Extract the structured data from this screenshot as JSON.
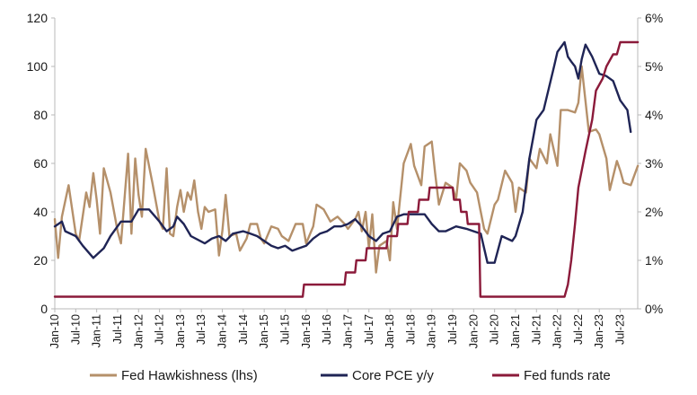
{
  "chart_data": {
    "type": "line",
    "title": "",
    "xlabel": "",
    "ylabel_left": "",
    "ylabel_right": "",
    "ylim_left": [
      0,
      120
    ],
    "yticks_left": [
      0,
      20,
      40,
      60,
      80,
      100,
      120
    ],
    "ylim_right": [
      0,
      6
    ],
    "yticks_right": [
      0,
      1,
      2,
      3,
      4,
      5,
      6
    ],
    "right_tick_suffix": "%",
    "x_range": [
      2010.0,
      2023.917
    ],
    "x_ticks": [
      {
        "label": "Jan-10",
        "t": 2010.0
      },
      {
        "label": "Jul-10",
        "t": 2010.5
      },
      {
        "label": "Jan-11",
        "t": 2011.0
      },
      {
        "label": "Jul-11",
        "t": 2011.5
      },
      {
        "label": "Jan-12",
        "t": 2012.0
      },
      {
        "label": "Jul-12",
        "t": 2012.5
      },
      {
        "label": "Jan-13",
        "t": 2013.0
      },
      {
        "label": "Jul-13",
        "t": 2013.5
      },
      {
        "label": "Jan-14",
        "t": 2014.0
      },
      {
        "label": "Jul-14",
        "t": 2014.5
      },
      {
        "label": "Jan-15",
        "t": 2015.0
      },
      {
        "label": "Jul-15",
        "t": 2015.5
      },
      {
        "label": "Jan-16",
        "t": 2016.0
      },
      {
        "label": "Jul-16",
        "t": 2016.5
      },
      {
        "label": "Jan-17",
        "t": 2017.0
      },
      {
        "label": "Jul-17",
        "t": 2017.5
      },
      {
        "label": "Jan-18",
        "t": 2018.0
      },
      {
        "label": "Jul-18",
        "t": 2018.5
      },
      {
        "label": "Jan-19",
        "t": 2019.0
      },
      {
        "label": "Jul-19",
        "t": 2019.5
      },
      {
        "label": "Jan-20",
        "t": 2020.0
      },
      {
        "label": "Jul-20",
        "t": 2020.5
      },
      {
        "label": "Jan-21",
        "t": 2021.0
      },
      {
        "label": "Jul-21",
        "t": 2021.5
      },
      {
        "label": "Jan-22",
        "t": 2022.0
      },
      {
        "label": "Jul-22",
        "t": 2022.5
      },
      {
        "label": "Jan-23",
        "t": 2023.0
      },
      {
        "label": "Jul-23",
        "t": 2023.5
      }
    ],
    "legend_position": "bottom",
    "series": [
      {
        "name": "Fed Hawkishness (lhs)",
        "axis": "left",
        "color": "#b5906a",
        "points": [
          [
            2010.0,
            37
          ],
          [
            2010.08,
            21
          ],
          [
            2010.17,
            38
          ],
          [
            2010.33,
            51
          ],
          [
            2010.5,
            31
          ],
          [
            2010.58,
            28
          ],
          [
            2010.75,
            48
          ],
          [
            2010.83,
            42
          ],
          [
            2010.92,
            56
          ],
          [
            2011.0,
            45
          ],
          [
            2011.08,
            31
          ],
          [
            2011.17,
            58
          ],
          [
            2011.33,
            48
          ],
          [
            2011.5,
            32
          ],
          [
            2011.58,
            27
          ],
          [
            2011.75,
            64
          ],
          [
            2011.83,
            31
          ],
          [
            2011.92,
            62
          ],
          [
            2012.0,
            47
          ],
          [
            2012.08,
            38
          ],
          [
            2012.17,
            66
          ],
          [
            2012.33,
            52
          ],
          [
            2012.5,
            36
          ],
          [
            2012.58,
            33
          ],
          [
            2012.67,
            58
          ],
          [
            2012.75,
            31
          ],
          [
            2012.83,
            30
          ],
          [
            2012.92,
            42
          ],
          [
            2013.0,
            49
          ],
          [
            2013.08,
            40
          ],
          [
            2013.17,
            48
          ],
          [
            2013.25,
            45
          ],
          [
            2013.33,
            53
          ],
          [
            2013.42,
            40
          ],
          [
            2013.5,
            33
          ],
          [
            2013.58,
            42
          ],
          [
            2013.67,
            40
          ],
          [
            2013.83,
            41
          ],
          [
            2013.92,
            22
          ],
          [
            2014.0,
            32
          ],
          [
            2014.08,
            47
          ],
          [
            2014.17,
            30
          ],
          [
            2014.33,
            31
          ],
          [
            2014.42,
            24
          ],
          [
            2014.58,
            29
          ],
          [
            2014.67,
            35
          ],
          [
            2014.83,
            35
          ],
          [
            2014.92,
            29
          ],
          [
            2015.0,
            27
          ],
          [
            2015.17,
            34
          ],
          [
            2015.33,
            33
          ],
          [
            2015.42,
            30
          ],
          [
            2015.58,
            28
          ],
          [
            2015.75,
            35
          ],
          [
            2015.92,
            35
          ],
          [
            2016.0,
            27
          ],
          [
            2016.17,
            34
          ],
          [
            2016.25,
            43
          ],
          [
            2016.42,
            41
          ],
          [
            2016.58,
            36
          ],
          [
            2016.75,
            38
          ],
          [
            2016.92,
            35
          ],
          [
            2017.0,
            33
          ],
          [
            2017.17,
            37
          ],
          [
            2017.25,
            40
          ],
          [
            2017.33,
            32
          ],
          [
            2017.42,
            40
          ],
          [
            2017.5,
            25
          ],
          [
            2017.58,
            39
          ],
          [
            2017.67,
            15
          ],
          [
            2017.75,
            26
          ],
          [
            2017.92,
            28
          ],
          [
            2018.0,
            20
          ],
          [
            2018.08,
            44
          ],
          [
            2018.17,
            33
          ],
          [
            2018.33,
            60
          ],
          [
            2018.5,
            68
          ],
          [
            2018.58,
            59
          ],
          [
            2018.75,
            51
          ],
          [
            2018.83,
            67
          ],
          [
            2019.0,
            69
          ],
          [
            2019.08,
            56
          ],
          [
            2019.17,
            43
          ],
          [
            2019.33,
            52
          ],
          [
            2019.5,
            50
          ],
          [
            2019.58,
            45
          ],
          [
            2019.67,
            60
          ],
          [
            2019.83,
            57
          ],
          [
            2019.92,
            52
          ],
          [
            2020.08,
            48
          ],
          [
            2020.17,
            40
          ],
          [
            2020.25,
            33
          ],
          [
            2020.33,
            31
          ],
          [
            2020.5,
            43
          ],
          [
            2020.58,
            45
          ],
          [
            2020.75,
            57
          ],
          [
            2020.92,
            52
          ],
          [
            2021.0,
            40
          ],
          [
            2021.08,
            50
          ],
          [
            2021.25,
            48
          ],
          [
            2021.33,
            62
          ],
          [
            2021.5,
            58
          ],
          [
            2021.58,
            66
          ],
          [
            2021.75,
            60
          ],
          [
            2021.83,
            72
          ],
          [
            2022.0,
            59
          ],
          [
            2022.08,
            82
          ],
          [
            2022.25,
            82
          ],
          [
            2022.42,
            81
          ],
          [
            2022.5,
            85
          ],
          [
            2022.58,
            100
          ],
          [
            2022.75,
            73
          ],
          [
            2022.92,
            74
          ],
          [
            2023.0,
            72
          ],
          [
            2023.17,
            62
          ],
          [
            2023.25,
            49
          ],
          [
            2023.42,
            61
          ],
          [
            2023.5,
            57
          ],
          [
            2023.58,
            52
          ],
          [
            2023.75,
            51
          ],
          [
            2023.92,
            59
          ]
        ]
      },
      {
        "name": "Core PCE y/y",
        "axis": "right",
        "color": "#1f2455",
        "points": [
          [
            2010.0,
            1.7
          ],
          [
            2010.17,
            1.8
          ],
          [
            2010.25,
            1.6
          ],
          [
            2010.5,
            1.5
          ],
          [
            2010.67,
            1.3
          ],
          [
            2010.92,
            1.05
          ],
          [
            2011.17,
            1.25
          ],
          [
            2011.33,
            1.5
          ],
          [
            2011.58,
            1.8
          ],
          [
            2011.83,
            1.8
          ],
          [
            2012.0,
            2.05
          ],
          [
            2012.25,
            2.05
          ],
          [
            2012.5,
            1.8
          ],
          [
            2012.67,
            1.6
          ],
          [
            2012.83,
            1.7
          ],
          [
            2012.92,
            1.9
          ],
          [
            2013.08,
            1.75
          ],
          [
            2013.25,
            1.5
          ],
          [
            2013.58,
            1.35
          ],
          [
            2013.75,
            1.45
          ],
          [
            2013.92,
            1.5
          ],
          [
            2014.08,
            1.4
          ],
          [
            2014.25,
            1.55
          ],
          [
            2014.5,
            1.6
          ],
          [
            2014.67,
            1.55
          ],
          [
            2014.83,
            1.5
          ],
          [
            2015.0,
            1.4
          ],
          [
            2015.17,
            1.3
          ],
          [
            2015.33,
            1.25
          ],
          [
            2015.5,
            1.3
          ],
          [
            2015.67,
            1.2
          ],
          [
            2015.83,
            1.25
          ],
          [
            2016.0,
            1.3
          ],
          [
            2016.17,
            1.45
          ],
          [
            2016.33,
            1.55
          ],
          [
            2016.5,
            1.6
          ],
          [
            2016.67,
            1.7
          ],
          [
            2016.83,
            1.7
          ],
          [
            2017.0,
            1.75
          ],
          [
            2017.17,
            1.85
          ],
          [
            2017.33,
            1.7
          ],
          [
            2017.5,
            1.5
          ],
          [
            2017.67,
            1.4
          ],
          [
            2017.83,
            1.55
          ],
          [
            2018.0,
            1.6
          ],
          [
            2018.17,
            1.9
          ],
          [
            2018.33,
            1.95
          ],
          [
            2018.5,
            1.95
          ],
          [
            2018.67,
            1.95
          ],
          [
            2018.83,
            1.95
          ],
          [
            2019.0,
            1.75
          ],
          [
            2019.17,
            1.6
          ],
          [
            2019.33,
            1.6
          ],
          [
            2019.58,
            1.7
          ],
          [
            2019.83,
            1.65
          ],
          [
            2020.0,
            1.6
          ],
          [
            2020.17,
            1.55
          ],
          [
            2020.33,
            0.95
          ],
          [
            2020.5,
            0.95
          ],
          [
            2020.67,
            1.5
          ],
          [
            2020.92,
            1.4
          ],
          [
            2021.0,
            1.5
          ],
          [
            2021.17,
            2.0
          ],
          [
            2021.33,
            3.1
          ],
          [
            2021.5,
            3.9
          ],
          [
            2021.67,
            4.1
          ],
          [
            2021.92,
            5.0
          ],
          [
            2022.0,
            5.3
          ],
          [
            2022.17,
            5.5
          ],
          [
            2022.25,
            5.2
          ],
          [
            2022.33,
            5.1
          ],
          [
            2022.42,
            5.0
          ],
          [
            2022.5,
            4.75
          ],
          [
            2022.58,
            5.15
          ],
          [
            2022.67,
            5.45
          ],
          [
            2022.83,
            5.2
          ],
          [
            2023.0,
            4.85
          ],
          [
            2023.17,
            4.8
          ],
          [
            2023.33,
            4.7
          ],
          [
            2023.5,
            4.3
          ],
          [
            2023.67,
            4.1
          ],
          [
            2023.75,
            3.65
          ]
        ]
      },
      {
        "name": "Fed funds rate",
        "axis": "right",
        "color": "#8b1a3a",
        "points": [
          [
            2010.0,
            0.25
          ],
          [
            2015.92,
            0.25
          ],
          [
            2015.95,
            0.5
          ],
          [
            2016.92,
            0.5
          ],
          [
            2016.95,
            0.75
          ],
          [
            2017.17,
            0.75
          ],
          [
            2017.2,
            1.0
          ],
          [
            2017.42,
            1.0
          ],
          [
            2017.45,
            1.25
          ],
          [
            2017.92,
            1.25
          ],
          [
            2017.95,
            1.5
          ],
          [
            2018.17,
            1.5
          ],
          [
            2018.2,
            1.75
          ],
          [
            2018.42,
            1.75
          ],
          [
            2018.45,
            2.0
          ],
          [
            2018.67,
            2.0
          ],
          [
            2018.7,
            2.25
          ],
          [
            2018.92,
            2.25
          ],
          [
            2018.95,
            2.5
          ],
          [
            2019.5,
            2.5
          ],
          [
            2019.53,
            2.25
          ],
          [
            2019.67,
            2.25
          ],
          [
            2019.7,
            2.0
          ],
          [
            2019.83,
            2.0
          ],
          [
            2019.86,
            1.75
          ],
          [
            2020.13,
            1.75
          ],
          [
            2020.16,
            0.25
          ],
          [
            2022.17,
            0.25
          ],
          [
            2022.25,
            0.5
          ],
          [
            2022.33,
            1.0
          ],
          [
            2022.42,
            1.75
          ],
          [
            2022.5,
            2.5
          ],
          [
            2022.67,
            3.25
          ],
          [
            2022.83,
            3.9
          ],
          [
            2022.92,
            4.5
          ],
          [
            2023.08,
            4.75
          ],
          [
            2023.17,
            5.0
          ],
          [
            2023.33,
            5.25
          ],
          [
            2023.42,
            5.25
          ],
          [
            2023.5,
            5.5
          ],
          [
            2023.92,
            5.5
          ]
        ]
      }
    ]
  }
}
